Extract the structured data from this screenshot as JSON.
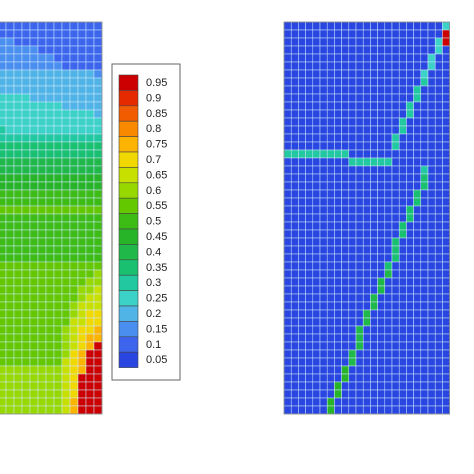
{
  "chart_data": [
    {
      "type": "heatmap",
      "panel": "left",
      "description_values": "field values, approximate, on a grid read from the image",
      "colorbar": {
        "ticks": [
          "0.95",
          "0.9",
          "0.85",
          "0.8",
          "0.75",
          "0.7",
          "0.65",
          "0.6",
          "0.55",
          "0.5",
          "0.45",
          "0.4",
          "0.35",
          "0.3",
          "0.25",
          "0.2",
          "0.15",
          "0.1",
          "0.05"
        ],
        "range": [
          0.05,
          0.95
        ],
        "colors": [
          "#cc0000",
          "#e52a00",
          "#f25c00",
          "#f98a00",
          "#fdb400",
          "#f0d800",
          "#c8e000",
          "#96d800",
          "#64c800",
          "#3cbc14",
          "#28b428",
          "#20b848",
          "#18c070",
          "#22c8a0",
          "#3cd2c8",
          "#50b4e6",
          "#4a8ef0",
          "#3c64ec",
          "#2a46e0"
        ]
      },
      "grid_lines": true
    },
    {
      "type": "heatmap",
      "panel": "right",
      "background_value": 0.05,
      "features": [
        {
          "kind": "fracture",
          "value_range": [
            0.25,
            0.45
          ]
        },
        {
          "kind": "hotspot",
          "value": 0.95
        }
      ],
      "grid_lines": true
    }
  ]
}
